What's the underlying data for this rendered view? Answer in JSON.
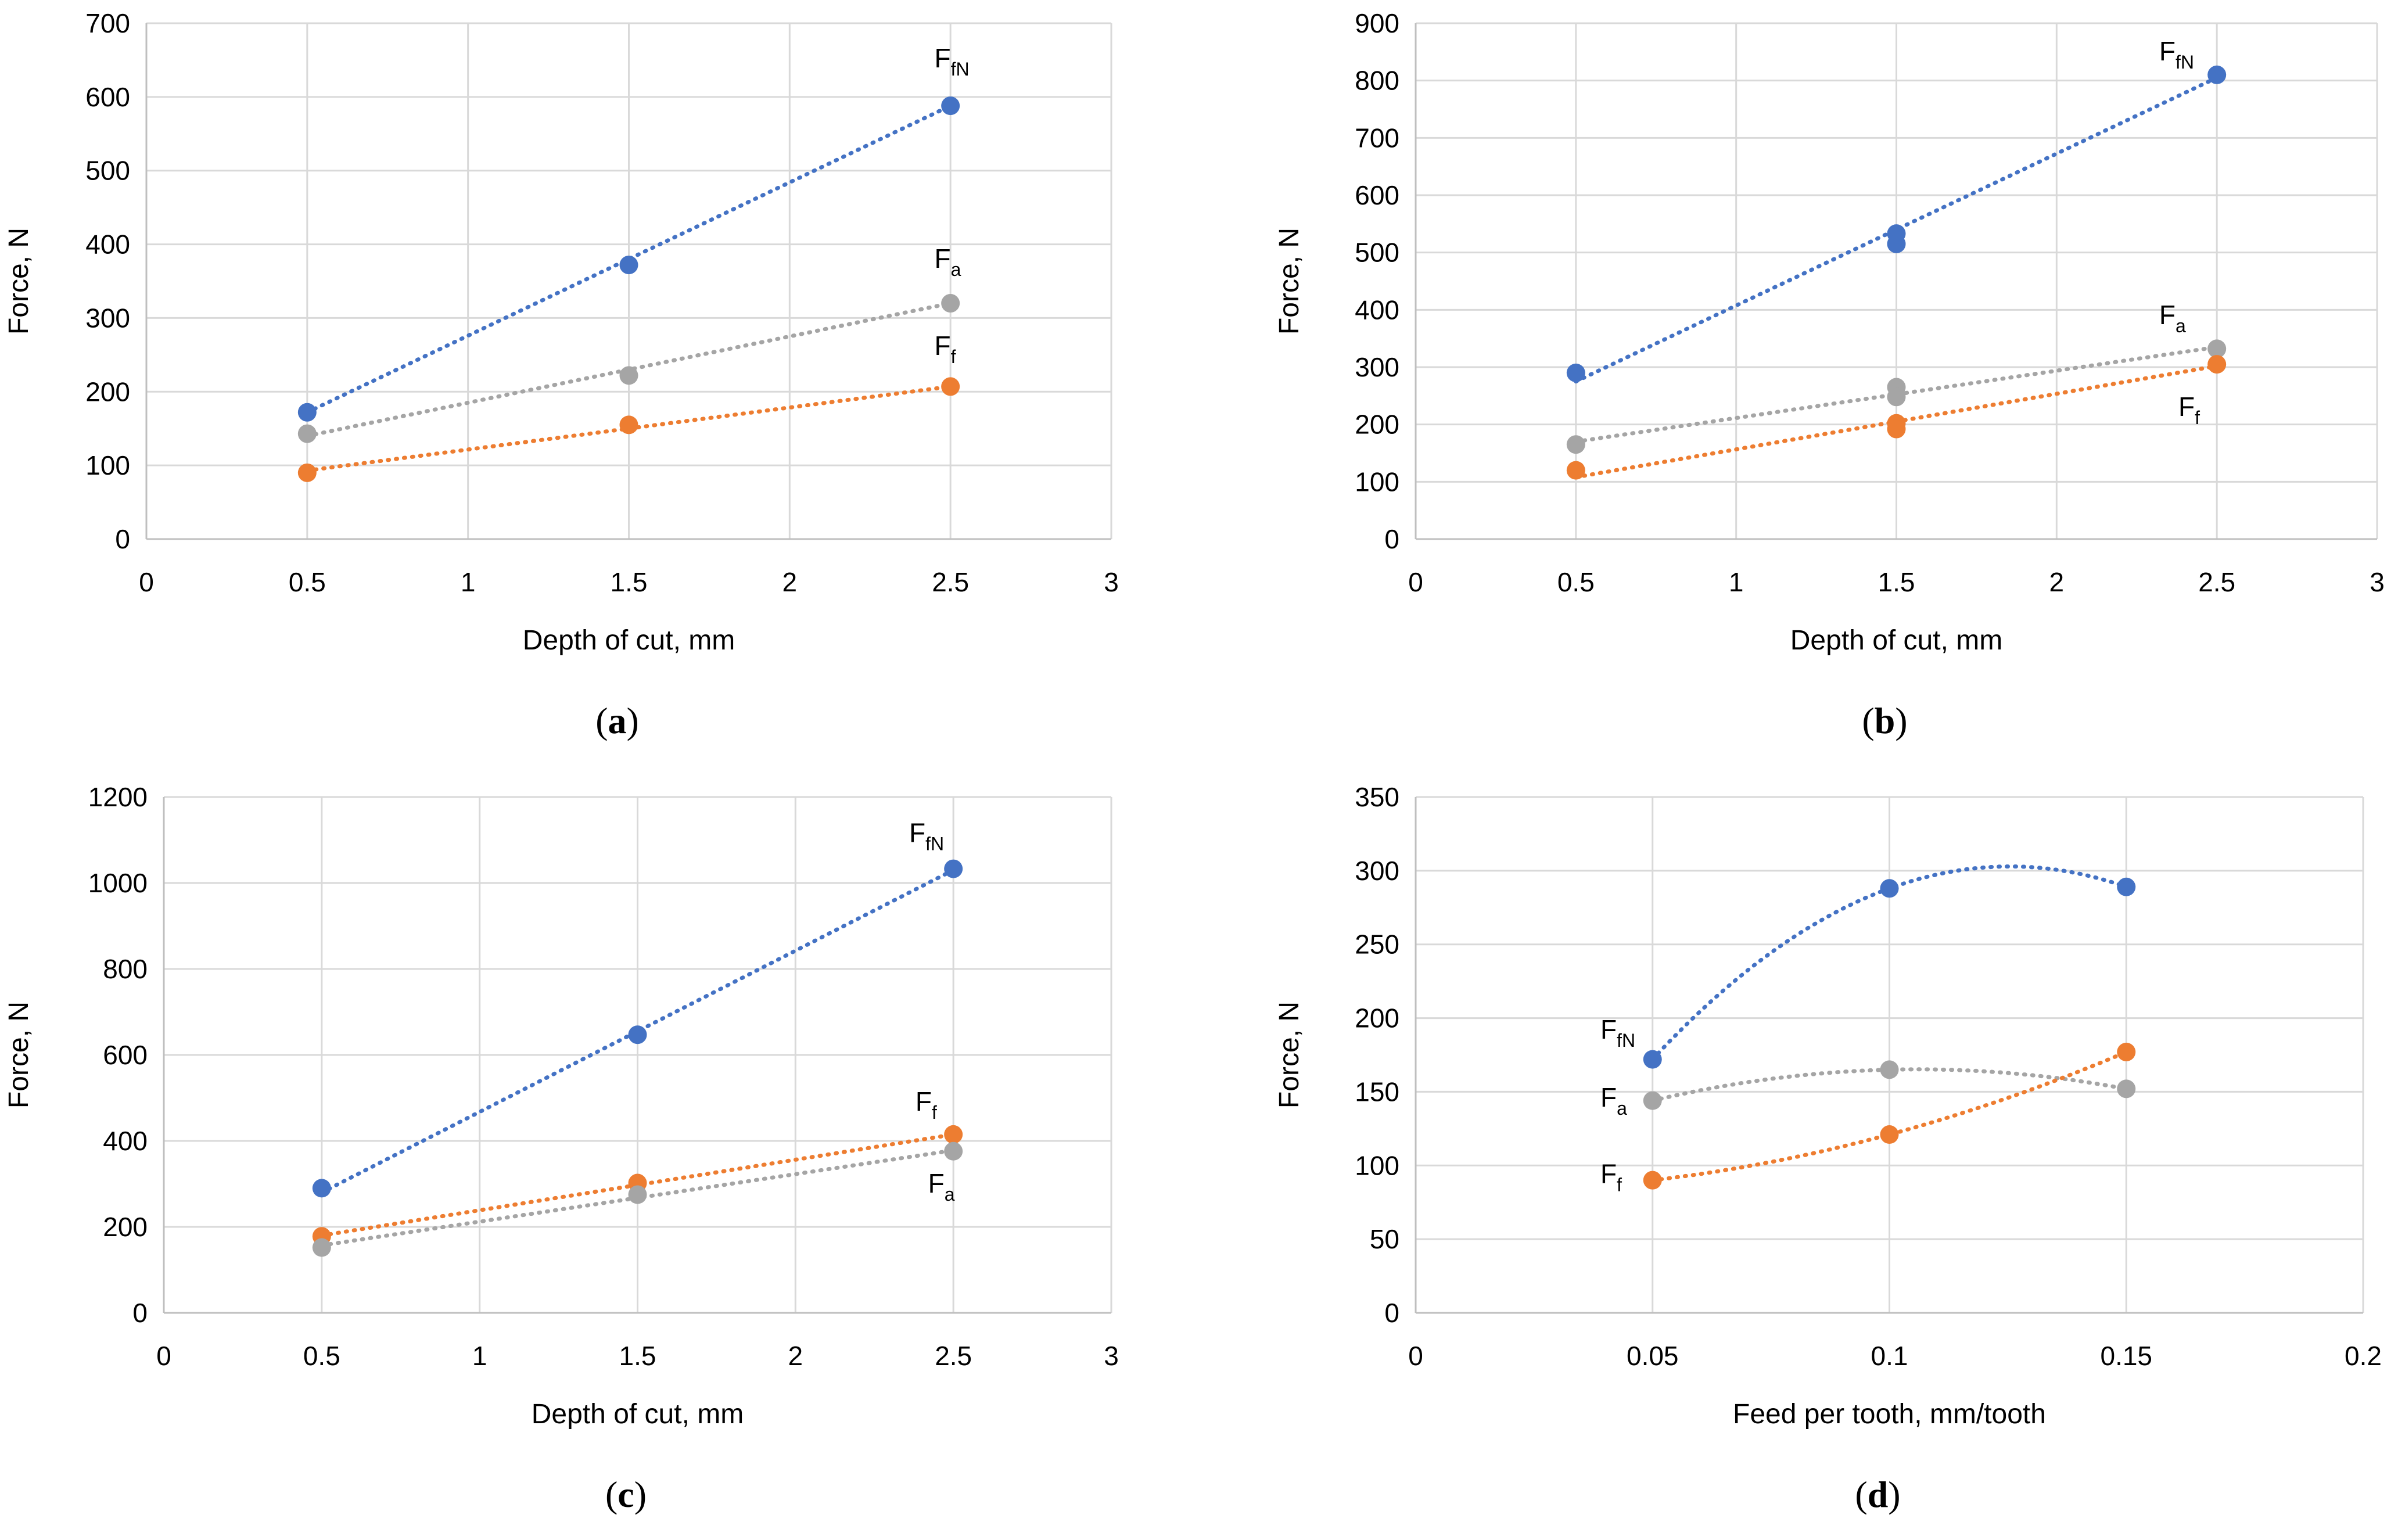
{
  "colors": {
    "FfN": "#4472C4",
    "Fa": "#A5A5A5",
    "Ff": "#ED7D31",
    "grid": "#D9D9D9"
  },
  "chart_data": [
    {
      "type": "scatter",
      "caption": "(a)",
      "caption_letter": "a",
      "xlabel": "Depth of cut, mm",
      "ylabel": "Force, N",
      "xlim": [
        0,
        3
      ],
      "ylim": [
        0,
        700
      ],
      "xticks": [
        "0",
        "0.5",
        "1",
        "1.5",
        "2",
        "2.5",
        "3"
      ],
      "yticks": [
        "0",
        "100",
        "200",
        "300",
        "400",
        "500",
        "600",
        "700"
      ],
      "xtick_values": [
        0,
        0.5,
        1,
        1.5,
        2,
        2.5,
        3
      ],
      "ytick_values": [
        0,
        100,
        200,
        300,
        400,
        500,
        600,
        700
      ],
      "trendline": "linear",
      "series": [
        {
          "key": "FfN",
          "name": "FfN",
          "label_main": "F",
          "label_sub": "fN",
          "label_at": [
            2.45,
            640
          ],
          "x": [
            0.5,
            1.5,
            2.5
          ],
          "y": [
            172,
            372,
            588
          ],
          "trend": [
            [
              0.5,
              172
            ],
            [
              2.5,
              588
            ]
          ]
        },
        {
          "key": "Fa",
          "name": "Fa",
          "label_main": "F",
          "label_sub": "a",
          "label_at": [
            2.45,
            368
          ],
          "x": [
            0.5,
            1.5,
            2.5
          ],
          "y": [
            143,
            222,
            320
          ],
          "trend": [
            [
              0.5,
              140
            ],
            [
              2.5,
              320
            ]
          ]
        },
        {
          "key": "Ff",
          "name": "Ff",
          "label_main": "F",
          "label_sub": "f",
          "label_at": [
            2.45,
            250
          ],
          "x": [
            0.5,
            1.5,
            2.5
          ],
          "y": [
            90,
            155,
            207
          ],
          "trend": [
            [
              0.5,
              93
            ],
            [
              2.5,
              207
            ]
          ]
        }
      ]
    },
    {
      "type": "scatter",
      "caption": "(b)",
      "caption_letter": "b",
      "xlabel": "Depth of cut, mm",
      "ylabel": "Force, N",
      "xlim": [
        0,
        3
      ],
      "ylim": [
        0,
        900
      ],
      "xticks": [
        "0",
        "0.5",
        "1",
        "1.5",
        "2",
        "2.5",
        "3"
      ],
      "yticks": [
        "0",
        "100",
        "200",
        "300",
        "400",
        "500",
        "600",
        "700",
        "800",
        "900"
      ],
      "xtick_values": [
        0,
        0.5,
        1,
        1.5,
        2,
        2.5,
        3
      ],
      "ytick_values": [
        0,
        100,
        200,
        300,
        400,
        500,
        600,
        700,
        800,
        900
      ],
      "trendline": "linear",
      "series": [
        {
          "key": "FfN",
          "name": "FfN",
          "label_main": "F",
          "label_sub": "fN",
          "label_at": [
            2.32,
            835
          ],
          "x": [
            0.5,
            1.5,
            1.5,
            2.5
          ],
          "y": [
            290,
            533,
            515,
            810
          ],
          "trend": [
            [
              0.5,
              275
            ],
            [
              2.5,
              805
            ]
          ]
        },
        {
          "key": "Fa",
          "name": "Fa",
          "label_main": "F",
          "label_sub": "a",
          "label_at": [
            2.32,
            375
          ],
          "x": [
            0.5,
            1.5,
            1.5,
            2.5
          ],
          "y": [
            165,
            265,
            248,
            332
          ],
          "trend": [
            [
              0.5,
              170
            ],
            [
              2.5,
              335
            ]
          ]
        },
        {
          "key": "Ff",
          "name": "Ff",
          "label_main": "F",
          "label_sub": "f",
          "label_at": [
            2.38,
            215
          ],
          "x": [
            0.5,
            1.5,
            1.5,
            2.5
          ],
          "y": [
            120,
            202,
            192,
            305
          ],
          "trend": [
            [
              0.5,
              108
            ],
            [
              2.5,
              302
            ]
          ]
        }
      ]
    },
    {
      "type": "scatter",
      "caption": "(c)",
      "caption_letter": "c",
      "xlabel": "Depth of cut, mm",
      "ylabel": "Force, N",
      "xlim": [
        0,
        3
      ],
      "ylim": [
        0,
        1200
      ],
      "xticks": [
        "0",
        "0.5",
        "1",
        "1.5",
        "2",
        "2.5",
        "3"
      ],
      "yticks": [
        "0",
        "200",
        "400",
        "600",
        "800",
        "1000",
        "1200"
      ],
      "xtick_values": [
        0,
        0.5,
        1,
        1.5,
        2,
        2.5,
        3
      ],
      "ytick_values": [
        0,
        200,
        400,
        600,
        800,
        1000,
        1200
      ],
      "trendline": "linear",
      "series": [
        {
          "key": "FfN",
          "name": "FfN",
          "label_main": "F",
          "label_sub": "fN",
          "label_at": [
            2.36,
            1095
          ],
          "x": [
            0.5,
            1.5,
            2.5
          ],
          "y": [
            290,
            647,
            1033
          ],
          "trend": [
            [
              0.5,
              280
            ],
            [
              2.5,
              1030
            ]
          ]
        },
        {
          "key": "Ff",
          "name": "Ff",
          "label_main": "F",
          "label_sub": "f",
          "label_at": [
            2.38,
            470
          ],
          "x": [
            0.5,
            1.5,
            2.5
          ],
          "y": [
            178,
            302,
            415
          ],
          "trend": [
            [
              0.5,
              180
            ],
            [
              2.5,
              415
            ]
          ]
        },
        {
          "key": "Fa",
          "name": "Fa",
          "label_main": "F",
          "label_sub": "a",
          "label_at": [
            2.42,
            280
          ],
          "x": [
            0.5,
            1.5,
            2.5
          ],
          "y": [
            152,
            275,
            376
          ],
          "trend": [
            [
              0.5,
              157
            ],
            [
              2.5,
              378
            ]
          ]
        }
      ]
    },
    {
      "type": "scatter",
      "caption": "(d)",
      "caption_letter": "d",
      "xlabel": "Feed per tooth, mm/tooth",
      "ylabel": "Force, N",
      "xlim": [
        0,
        0.2
      ],
      "ylim": [
        0,
        350
      ],
      "xticks": [
        "0",
        "0.05",
        "0.1",
        "0.15",
        "0.2"
      ],
      "yticks": [
        "0",
        "50",
        "100",
        "150",
        "200",
        "250",
        "300",
        "350"
      ],
      "xtick_values": [
        0,
        0.05,
        0.1,
        0.15,
        0.2
      ],
      "ytick_values": [
        0,
        50,
        100,
        150,
        200,
        250,
        300,
        350
      ],
      "trendline": "polynomial",
      "series": [
        {
          "key": "FfN",
          "name": "FfN",
          "label_main": "F",
          "label_sub": "fN",
          "label_at": [
            0.039,
            186
          ],
          "x": [
            0.05,
            0.1,
            0.15
          ],
          "y": [
            172,
            288,
            289
          ],
          "trend": "poly"
        },
        {
          "key": "Fa",
          "name": "Fa",
          "label_main": "F",
          "label_sub": "a",
          "label_at": [
            0.039,
            140
          ],
          "x": [
            0.05,
            0.1,
            0.15
          ],
          "y": [
            144,
            165,
            152
          ],
          "trend": "poly"
        },
        {
          "key": "Ff",
          "name": "Ff",
          "label_main": "F",
          "label_sub": "f",
          "label_at": [
            0.039,
            88
          ],
          "x": [
            0.05,
            0.1,
            0.15
          ],
          "y": [
            90,
            121,
            177
          ],
          "trend": "poly"
        }
      ]
    }
  ]
}
